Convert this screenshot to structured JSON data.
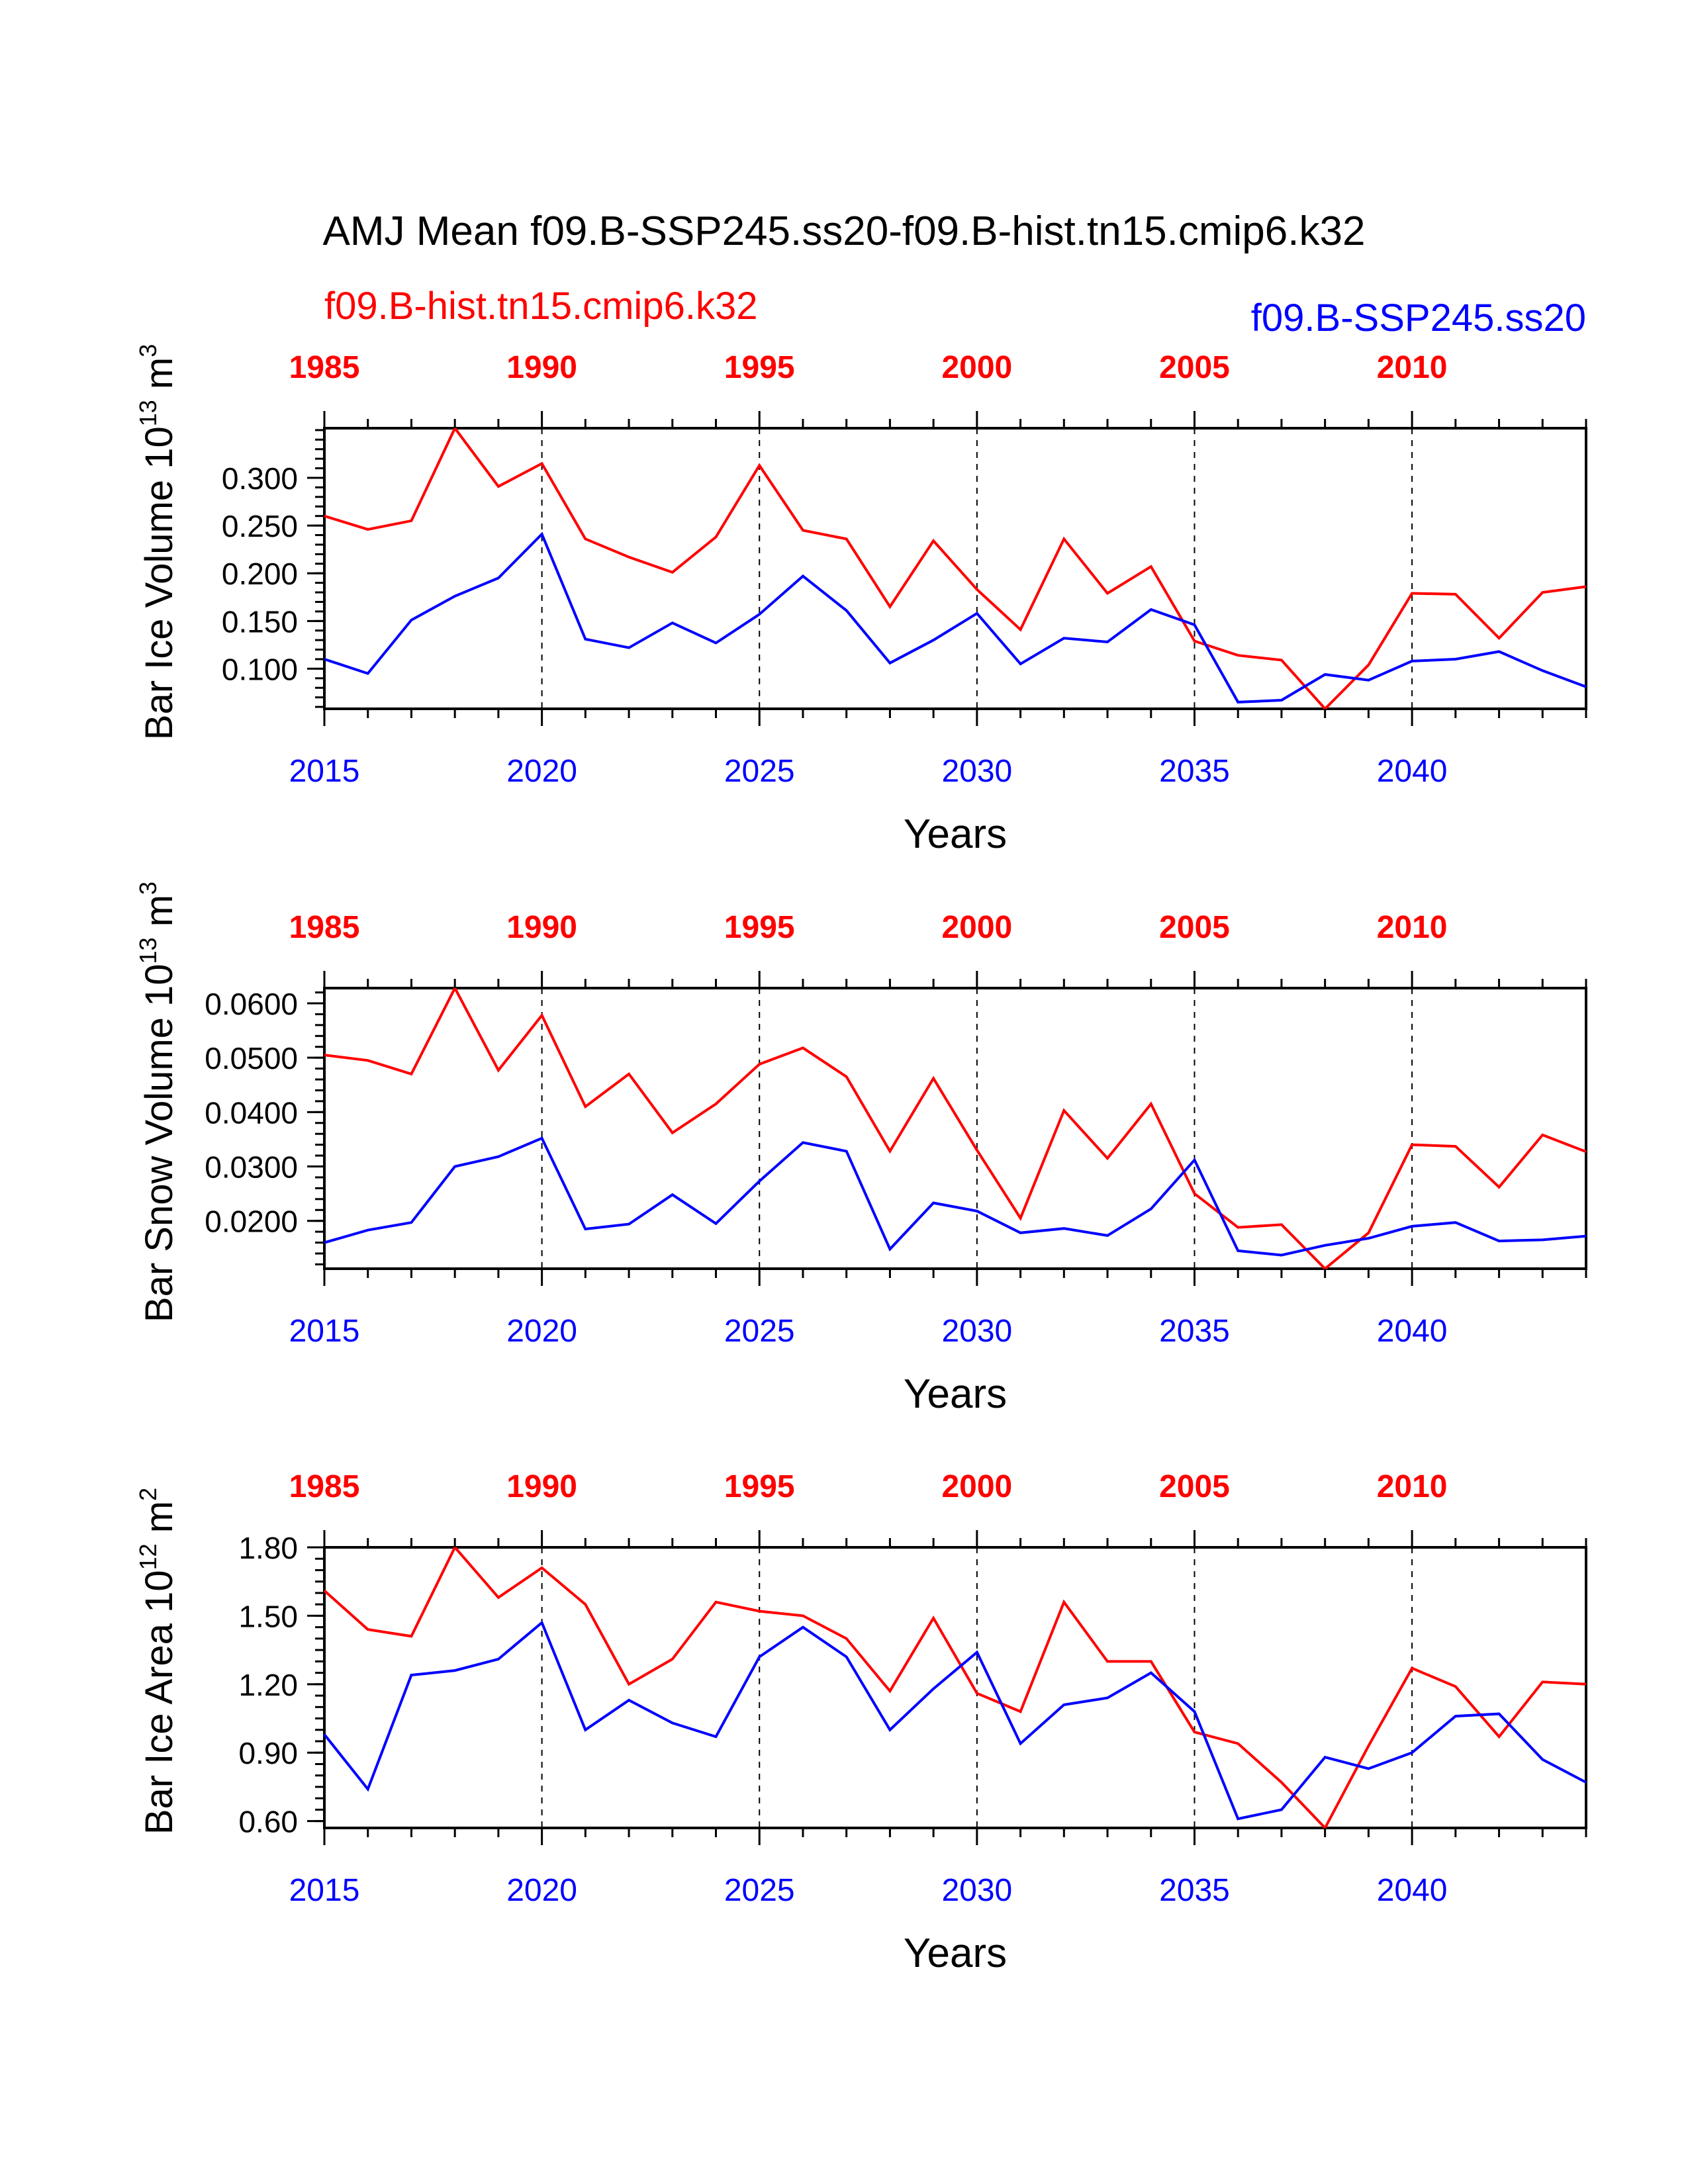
{
  "title": "AMJ Mean f09.B-SSP245.ss20-f09.B-hist.tn15.cmip6.k32",
  "legend": {
    "left_label": "f09.B-hist.tn15.cmip6.k32",
    "right_label": "f09.B-SSP245.ss20"
  },
  "colors": {
    "hist": "#ff0000",
    "ssp": "#0000ff",
    "axis": "#000000",
    "text": "#000000"
  },
  "chart_data": [
    {
      "type": "line",
      "ylabel": "Bar Ice Volume 10",
      "ylabel_sup": "13",
      "ylabel_unit": " m",
      "ylabel_unit_sup": "3",
      "xlabel": "Years",
      "x_bottom_range": [
        2015,
        2044
      ],
      "x_top_range": [
        1985,
        2014
      ],
      "bottom_ticks": [
        "2015",
        "2020",
        "2025",
        "2030",
        "2035",
        "2040"
      ],
      "top_ticks": [
        "1985",
        "1990",
        "1995",
        "2000",
        "2005",
        "2010"
      ],
      "ylim": [
        0.058,
        0.352
      ],
      "y_ticks": [
        "0.100",
        "0.150",
        "0.200",
        "0.250",
        "0.300"
      ],
      "y_tick_values": [
        0.1,
        0.15,
        0.2,
        0.25,
        0.3
      ],
      "y_minor_step": 0.01,
      "grid_vertical_dashed": true,
      "series": [
        {
          "name": "f09.B-hist.tn15.cmip6.k32",
          "color": "#ff0000",
          "x": [
            1985,
            1986,
            1987,
            1988,
            1989,
            1990,
            1991,
            1992,
            1993,
            1994,
            1995,
            1996,
            1997,
            1998,
            1999,
            2000,
            2001,
            2002,
            2003,
            2004,
            2005,
            2006,
            2007,
            2008,
            2009,
            2010,
            2011,
            2012,
            2013,
            2014
          ],
          "values": [
            0.26,
            0.246,
            0.255,
            0.352,
            0.291,
            0.315,
            0.236,
            0.217,
            0.201,
            0.238,
            0.313,
            0.245,
            0.236,
            0.165,
            0.234,
            0.183,
            0.141,
            0.236,
            0.179,
            0.207,
            0.129,
            0.114,
            0.109,
            0.058,
            0.104,
            0.179,
            0.178,
            0.132,
            0.18,
            0.186
          ]
        },
        {
          "name": "f09.B-SSP245.ss20",
          "color": "#0000ff",
          "x": [
            2015,
            2016,
            2017,
            2018,
            2019,
            2020,
            2021,
            2022,
            2023,
            2024,
            2025,
            2026,
            2027,
            2028,
            2029,
            2030,
            2031,
            2032,
            2033,
            2034,
            2035,
            2036,
            2037,
            2038,
            2039,
            2040,
            2041,
            2042,
            2043,
            2044
          ],
          "values": [
            0.11,
            0.095,
            0.151,
            0.176,
            0.195,
            0.241,
            0.131,
            0.122,
            0.148,
            0.127,
            0.157,
            0.197,
            0.161,
            0.106,
            0.13,
            0.158,
            0.105,
            0.132,
            0.128,
            0.162,
            0.146,
            0.065,
            0.067,
            0.094,
            0.088,
            0.108,
            0.11,
            0.118,
            0.098,
            0.081
          ]
        }
      ]
    },
    {
      "type": "line",
      "ylabel": "Bar Snow Volume 10",
      "ylabel_sup": "13",
      "ylabel_unit": " m",
      "ylabel_unit_sup": "3",
      "xlabel": "Years",
      "x_bottom_range": [
        2015,
        2044
      ],
      "x_top_range": [
        1985,
        2014
      ],
      "bottom_ticks": [
        "2015",
        "2020",
        "2025",
        "2030",
        "2035",
        "2040"
      ],
      "top_ticks": [
        "1985",
        "1990",
        "1995",
        "2000",
        "2005",
        "2010"
      ],
      "ylim": [
        0.0112,
        0.0628
      ],
      "y_ticks": [
        "0.0200",
        "0.0300",
        "0.0400",
        "0.0500",
        "0.0600"
      ],
      "y_tick_values": [
        0.02,
        0.03,
        0.04,
        0.05,
        0.06
      ],
      "y_minor_step": 0.002,
      "grid_vertical_dashed": true,
      "series": [
        {
          "name": "f09.B-hist.tn15.cmip6.k32",
          "color": "#ff0000",
          "x": [
            1985,
            1986,
            1987,
            1988,
            1989,
            1990,
            1991,
            1992,
            1993,
            1994,
            1995,
            1996,
            1997,
            1998,
            1999,
            2000,
            2001,
            2002,
            2003,
            2004,
            2005,
            2006,
            2007,
            2008,
            2009,
            2010,
            2011,
            2012,
            2013,
            2014
          ],
          "values": [
            0.0505,
            0.0495,
            0.047,
            0.0628,
            0.0477,
            0.0578,
            0.041,
            0.047,
            0.0362,
            0.0415,
            0.0488,
            0.0518,
            0.0465,
            0.0328,
            0.0462,
            0.033,
            0.0205,
            0.0403,
            0.0315,
            0.0415,
            0.025,
            0.0188,
            0.0193,
            0.0112,
            0.0178,
            0.034,
            0.0337,
            0.0262,
            0.0358,
            0.0327
          ]
        },
        {
          "name": "f09.B-SSP245.ss20",
          "color": "#0000ff",
          "x": [
            2015,
            2016,
            2017,
            2018,
            2019,
            2020,
            2021,
            2022,
            2023,
            2024,
            2025,
            2026,
            2027,
            2028,
            2029,
            2030,
            2031,
            2032,
            2033,
            2034,
            2035,
            2036,
            2037,
            2038,
            2039,
            2040,
            2041,
            2042,
            2043,
            2044
          ],
          "values": [
            0.016,
            0.0183,
            0.0197,
            0.03,
            0.0318,
            0.0352,
            0.0185,
            0.0194,
            0.0248,
            0.0195,
            0.0273,
            0.0344,
            0.0328,
            0.0148,
            0.0233,
            0.0218,
            0.0178,
            0.0186,
            0.0173,
            0.0222,
            0.0312,
            0.0145,
            0.0137,
            0.0155,
            0.0168,
            0.019,
            0.0197,
            0.0163,
            0.0165,
            0.0172
          ]
        }
      ]
    },
    {
      "type": "line",
      "ylabel": "Bar Ice Area 10",
      "ylabel_sup": "12",
      "ylabel_unit": " m",
      "ylabel_unit_sup": "2",
      "xlabel": "Years",
      "x_bottom_range": [
        2015,
        2044
      ],
      "x_top_range": [
        1985,
        2014
      ],
      "bottom_ticks": [
        "2015",
        "2020",
        "2025",
        "2030",
        "2035",
        "2040"
      ],
      "top_ticks": [
        "1985",
        "1990",
        "1995",
        "2000",
        "2005",
        "2010"
      ],
      "ylim": [
        0.57,
        1.8
      ],
      "y_ticks": [
        "0.60",
        "0.90",
        "1.20",
        "1.50",
        "1.80"
      ],
      "y_tick_values": [
        0.6,
        0.9,
        1.2,
        1.5,
        1.8
      ],
      "y_minor_step": 0.05,
      "grid_vertical_dashed": true,
      "series": [
        {
          "name": "f09.B-hist.tn15.cmip6.k32",
          "color": "#ff0000",
          "x": [
            1985,
            1986,
            1987,
            1988,
            1989,
            1990,
            1991,
            1992,
            1993,
            1994,
            1995,
            1996,
            1997,
            1998,
            1999,
            2000,
            2001,
            2002,
            2003,
            2004,
            2005,
            2006,
            2007,
            2008,
            2009,
            2010,
            2011,
            2012,
            2013,
            2014
          ],
          "values": [
            1.61,
            1.44,
            1.41,
            1.8,
            1.58,
            1.71,
            1.55,
            1.2,
            1.31,
            1.56,
            1.52,
            1.5,
            1.4,
            1.17,
            1.49,
            1.16,
            1.08,
            1.56,
            1.3,
            1.3,
            0.99,
            0.94,
            0.77,
            0.57,
            0.93,
            1.27,
            1.19,
            0.97,
            1.21,
            1.2
          ]
        },
        {
          "name": "f09.B-SSP245.ss20",
          "color": "#0000ff",
          "x": [
            2015,
            2016,
            2017,
            2018,
            2019,
            2020,
            2021,
            2022,
            2023,
            2024,
            2025,
            2026,
            2027,
            2028,
            2029,
            2030,
            2031,
            2032,
            2033,
            2034,
            2035,
            2036,
            2037,
            2038,
            2039,
            2040,
            2041,
            2042,
            2043,
            2044
          ],
          "values": [
            0.98,
            0.74,
            1.24,
            1.26,
            1.31,
            1.47,
            1.0,
            1.13,
            1.03,
            0.97,
            1.32,
            1.45,
            1.32,
            1.0,
            1.18,
            1.34,
            0.94,
            1.11,
            1.14,
            1.25,
            1.08,
            0.61,
            0.65,
            0.88,
            0.83,
            0.9,
            1.06,
            1.07,
            0.87,
            0.77
          ]
        }
      ]
    }
  ]
}
